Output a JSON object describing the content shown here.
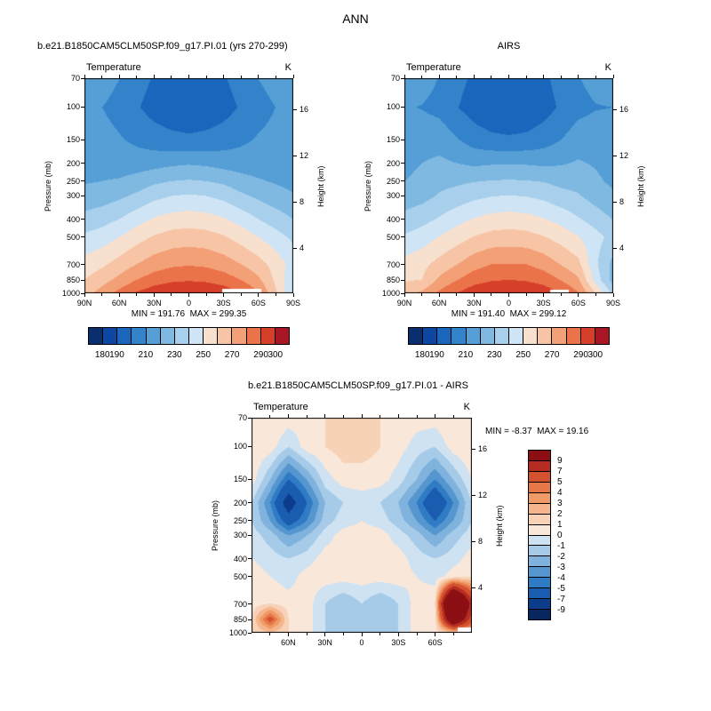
{
  "title": "ANN",
  "chart_data": [
    {
      "type": "heatmap",
      "name": "model",
      "header": "b.e21.B1850CAM5CLM50SP.f09_g17.PI.01 (yrs 270-299)",
      "field_label": "Temperature",
      "units": "K",
      "min_max": "MIN = 191.76  MAX = 299.35",
      "ylabel_left": "Pressure (mb)",
      "ylabel_right": "Height (km)",
      "pressure_levels": [
        70,
        100,
        150,
        200,
        250,
        300,
        400,
        500,
        700,
        850,
        1000
      ],
      "height_ticks_km": [
        16,
        12,
        8,
        4
      ],
      "x_major_lats": [
        90,
        60,
        30,
        0,
        -30,
        -60,
        -90
      ],
      "x_major_labels": [
        "90N",
        "60N",
        "30N",
        "0",
        "30S",
        "60S",
        "90S"
      ],
      "x_minor_lats": [
        75,
        45,
        15,
        -15,
        -45,
        -75
      ],
      "lats": [
        90,
        75,
        60,
        45,
        30,
        15,
        0,
        -15,
        -30,
        -45,
        -60,
        -75,
        -90
      ],
      "values": [
        [
          218,
          215,
          210,
          204,
          199,
          196,
          195,
          196,
          199,
          204,
          210,
          214,
          216
        ],
        [
          212,
          210,
          206,
          201,
          196,
          193,
          191.8,
          193,
          196,
          201,
          206,
          210,
          211
        ],
        [
          215,
          214,
          211,
          208,
          205,
          203,
          202,
          203,
          205,
          208,
          211,
          213,
          214
        ],
        [
          216,
          216,
          215,
          215,
          216,
          218,
          219,
          218,
          216,
          215,
          215,
          215,
          214
        ],
        [
          219,
          220,
          221,
          224,
          228,
          230,
          231,
          230,
          228,
          224,
          221,
          219,
          217
        ],
        [
          224,
          225,
          228,
          232,
          237,
          240,
          241,
          240,
          237,
          232,
          228,
          224,
          221
        ],
        [
          233,
          236,
          240,
          246,
          251,
          254,
          255,
          254,
          251,
          246,
          240,
          235,
          230
        ],
        [
          242,
          245,
          250,
          256,
          261,
          264,
          265,
          264,
          261,
          256,
          250,
          244,
          238
        ],
        [
          254,
          258,
          264,
          270,
          275,
          278,
          279,
          278,
          275,
          270,
          264,
          256,
          246
        ],
        [
          260,
          266,
          273,
          280,
          285,
          288,
          289,
          288,
          285,
          280,
          272,
          258,
          242
        ],
        [
          266,
          274,
          283,
          291,
          296,
          299,
          299.4,
          299,
          296,
          291,
          281,
          262,
          240
        ]
      ],
      "levels": [
        180,
        190,
        200,
        210,
        220,
        230,
        240,
        250,
        260,
        270,
        280,
        290,
        300
      ],
      "palette": [
        "#0a2e6e",
        "#0d47a1",
        "#1a66bd",
        "#3383cb",
        "#569fd6",
        "#7fb9e2",
        "#a8d0ec",
        "#cfe4f4",
        "#f8e0cf",
        "#f7c5a5",
        "#f3a077",
        "#ea734a",
        "#d6402a",
        "#a81626"
      ],
      "colorbar_tick_labels": [
        "180",
        "190",
        "210",
        "230",
        "250",
        "270",
        "290",
        "300"
      ],
      "masks": [
        {
          "lat": [
            -29,
            -63
          ],
          "p": [
            948,
            1000
          ]
        }
      ]
    },
    {
      "type": "heatmap",
      "name": "airs",
      "header": "AIRS",
      "field_label": "Temperature",
      "units": "K",
      "min_max": "MIN = 191.40  MAX = 299.12",
      "ylabel_left": "Pressure (mb)",
      "ylabel_right": "Height (km)",
      "pressure_levels": [
        70,
        100,
        150,
        200,
        250,
        300,
        400,
        500,
        700,
        850,
        1000
      ],
      "height_ticks_km": [
        16,
        12,
        8,
        4
      ],
      "x_major_lats": [
        90,
        60,
        30,
        0,
        -30,
        -60,
        -90
      ],
      "x_major_labels": [
        "90N",
        "60N",
        "30N",
        "0",
        "30S",
        "60S",
        "90S"
      ],
      "x_minor_lats": [
        75,
        45,
        15,
        -15,
        -45,
        -75
      ],
      "lats": [
        90,
        75,
        60,
        45,
        30,
        15,
        0,
        -15,
        -30,
        -45,
        -60,
        -75,
        -90
      ],
      "values": [
        [
          217,
          214,
          209.5,
          203.5,
          198,
          195,
          194,
          195,
          198,
          203.5,
          209.5,
          213,
          215
        ],
        [
          211,
          209.5,
          207,
          200.5,
          195,
          191.9,
          191.4,
          192,
          195.5,
          201.5,
          207,
          209.5,
          210
        ],
        [
          214.5,
          216,
          216,
          211,
          205.5,
          202.5,
          201.5,
          202.5,
          205.5,
          210,
          215,
          215,
          214
        ],
        [
          217,
          220,
          222,
          220,
          218,
          219,
          219.5,
          219,
          218,
          219,
          221,
          219,
          215
        ],
        [
          220,
          223,
          227,
          228,
          229.5,
          230.5,
          231,
          230.5,
          229.5,
          227,
          226,
          222,
          218
        ],
        [
          224.5,
          226.5,
          231,
          234,
          237.5,
          239.5,
          240.5,
          239.5,
          237.5,
          233.5,
          231,
          225.5,
          221.5
        ],
        [
          233,
          236.5,
          241,
          246.5,
          250.5,
          253.5,
          254.5,
          253.5,
          250.5,
          246.5,
          241,
          235.5,
          229.5
        ],
        [
          241.5,
          245,
          250.5,
          255.5,
          260.5,
          263.5,
          264.5,
          263.5,
          260.5,
          256,
          250.5,
          243.5,
          237
        ],
        [
          253.5,
          257,
          263.5,
          269.5,
          276,
          280,
          280,
          280,
          276,
          269.5,
          263,
          242,
          227
        ],
        [
          259,
          260,
          272,
          279.5,
          286,
          289,
          290,
          289,
          286,
          279.5,
          271.5,
          246,
          226
        ],
        [
          265,
          272,
          282,
          290,
          296,
          298.5,
          299.1,
          298.5,
          296,
          290,
          280.5,
          260,
          237
        ]
      ],
      "levels": [
        180,
        190,
        200,
        210,
        220,
        230,
        240,
        250,
        260,
        270,
        280,
        290,
        300
      ],
      "palette": [
        "#0a2e6e",
        "#0d47a1",
        "#1a66bd",
        "#3383cb",
        "#569fd6",
        "#7fb9e2",
        "#a8d0ec",
        "#cfe4f4",
        "#f8e0cf",
        "#f7c5a5",
        "#f3a077",
        "#ea734a",
        "#d6402a",
        "#a81626"
      ],
      "colorbar_tick_labels": [
        "180",
        "190",
        "210",
        "230",
        "250",
        "270",
        "290",
        "300"
      ],
      "masks": [
        {
          "lat": [
            -36,
            -52
          ],
          "p": [
            958,
            1000
          ]
        }
      ]
    },
    {
      "type": "heatmap",
      "name": "difference",
      "header": "b.e21.B1850CAM5CLM50SP.f09_g17.PI.01 - AIRS",
      "field_label": "Temperature",
      "units": "K",
      "min_max": "MIN =  -8.37  MAX =  19.16",
      "ylabel_left": "Pressure (mb)",
      "ylabel_right": "Height (km)",
      "pressure_levels": [
        70,
        100,
        150,
        200,
        250,
        300,
        400,
        500,
        700,
        850,
        1000
      ],
      "height_ticks_km": [
        16,
        12,
        8,
        4
      ],
      "x_major_lats": [
        60,
        30,
        0,
        -30,
        -60
      ],
      "x_major_labels": [
        "60N",
        "30N",
        "0",
        "30S",
        "60S"
      ],
      "x_minor_lats": [
        75,
        45,
        15,
        -15,
        -45,
        -75
      ],
      "lats": [
        90,
        75,
        60,
        45,
        30,
        15,
        0,
        -15,
        -30,
        -45,
        -60,
        -75,
        -90
      ],
      "values": [
        [
          1,
          1,
          0.5,
          0.5,
          1,
          1,
          1,
          1,
          1,
          0.5,
          0.5,
          1,
          1
        ],
        [
          1,
          0.5,
          -1,
          0.5,
          1,
          1.5,
          1.5,
          1,
          0.5,
          -0.5,
          -1,
          0.5,
          1
        ],
        [
          0.5,
          -2,
          -5,
          -3,
          -0.5,
          0.5,
          0.5,
          0.5,
          -0.5,
          -2,
          -4,
          -2,
          0
        ],
        [
          -1,
          -4,
          -8.4,
          -5,
          -2,
          -1,
          -0.5,
          -1,
          -2,
          -4,
          -7,
          -4,
          -1
        ],
        [
          -1,
          -3,
          -6,
          -4,
          -1.5,
          -0.5,
          0,
          -0.5,
          -1.5,
          -3,
          -5,
          -3,
          -1
        ],
        [
          -0.5,
          -1.5,
          -3,
          -2,
          -0.5,
          0.5,
          0.5,
          0.5,
          -0.5,
          -1.5,
          -3,
          -1.5,
          -0.5
        ],
        [
          0,
          -0.5,
          -1,
          -0.5,
          0.5,
          0.5,
          0.5,
          0.5,
          0.5,
          -0.5,
          -1,
          -0.5,
          0.5
        ],
        [
          0.5,
          0,
          -0.5,
          0.5,
          0.5,
          0.5,
          0.5,
          0.5,
          0.5,
          0,
          -0.5,
          0.5,
          1
        ],
        [
          0.5,
          1,
          0.5,
          0.5,
          -1,
          -2,
          -1,
          -2,
          -1,
          0.5,
          1,
          19.2,
          8
        ],
        [
          1,
          6,
          1,
          0.5,
          -1,
          -2,
          -2,
          -2,
          -1,
          0.5,
          0.5,
          14,
          6
        ],
        [
          1,
          2,
          1,
          0.5,
          -1,
          -1.5,
          -1,
          -1.5,
          -1,
          0.5,
          0.5,
          2,
          2
        ]
      ],
      "levels": [
        -9,
        -7,
        -5,
        -4,
        -3,
        -2,
        -1,
        0,
        1,
        2,
        3,
        4,
        5,
        7,
        9
      ],
      "palette": [
        "#08275f",
        "#0c3d8c",
        "#1a5cb0",
        "#2f7bc4",
        "#5596cf",
        "#7fb2dc",
        "#a6cbe8",
        "#cfe2f2",
        "#f9e8da",
        "#f8d2b6",
        "#f5b68e",
        "#f09a68",
        "#e67747",
        "#d4512f",
        "#b52c20",
        "#8c0f14"
      ],
      "colorbar_tick_labels": [
        "9",
        "7",
        "5",
        "4",
        "3",
        "2",
        "1",
        "0",
        "-1",
        "-2",
        "-3",
        "-4",
        "-5",
        "-7",
        "-9"
      ],
      "masks": [
        {
          "lat": [
            -79,
            -90
          ],
          "p": [
            940,
            1000
          ]
        }
      ]
    }
  ]
}
